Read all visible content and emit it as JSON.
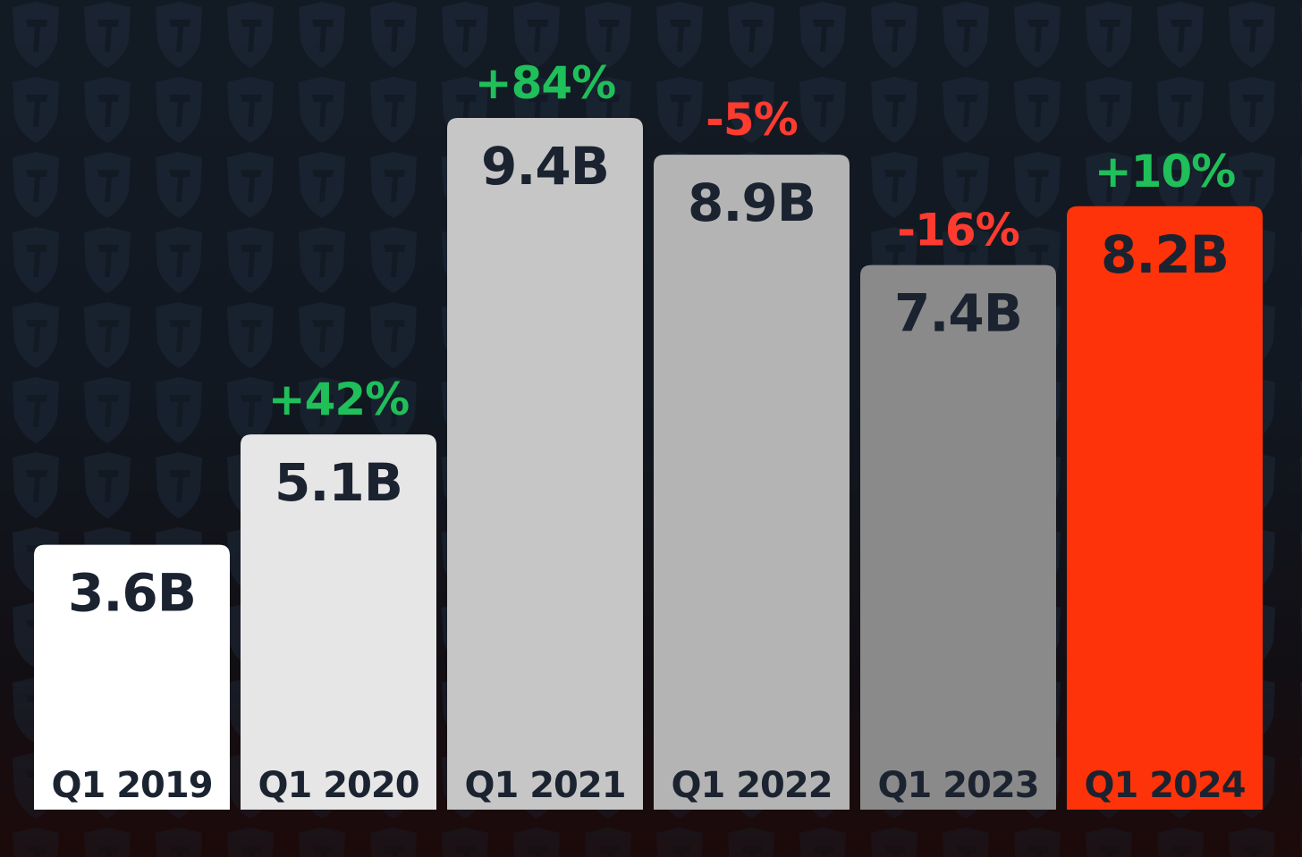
{
  "chart_data": {
    "type": "bar",
    "categories": [
      "Q1 2019",
      "Q1 2020",
      "Q1 2021",
      "Q1 2022",
      "Q1 2023",
      "Q1 2024"
    ],
    "values": [
      3.6,
      5.1,
      9.4,
      8.9,
      7.4,
      8.2
    ],
    "value_labels": [
      "3.6B",
      "5.1B",
      "9.4B",
      "8.9B",
      "7.4B",
      "8.2B"
    ],
    "change_labels": [
      "",
      "+42%",
      "+84%",
      "-5%",
      "-16%",
      "+10%"
    ],
    "change_colors": [
      "",
      "#1fbf5a",
      "#1fbf5a",
      "#ff3b30",
      "#ff3b30",
      "#1fbf5a"
    ],
    "bar_colors": [
      "#ffffff",
      "#e6e6e6",
      "#c6c6c6",
      "#b4b4b4",
      "#8a8a8a",
      "#ff3309"
    ],
    "ylim": [
      0,
      9.4
    ],
    "grid": false,
    "legend": "none"
  },
  "colors": {
    "label_text": "#1b2330",
    "positive": "#1fbf5a",
    "negative": "#ff3b30",
    "background": "#121a24",
    "watermark": "#1c2735"
  },
  "watermark_icon": "shield-logo-icon"
}
